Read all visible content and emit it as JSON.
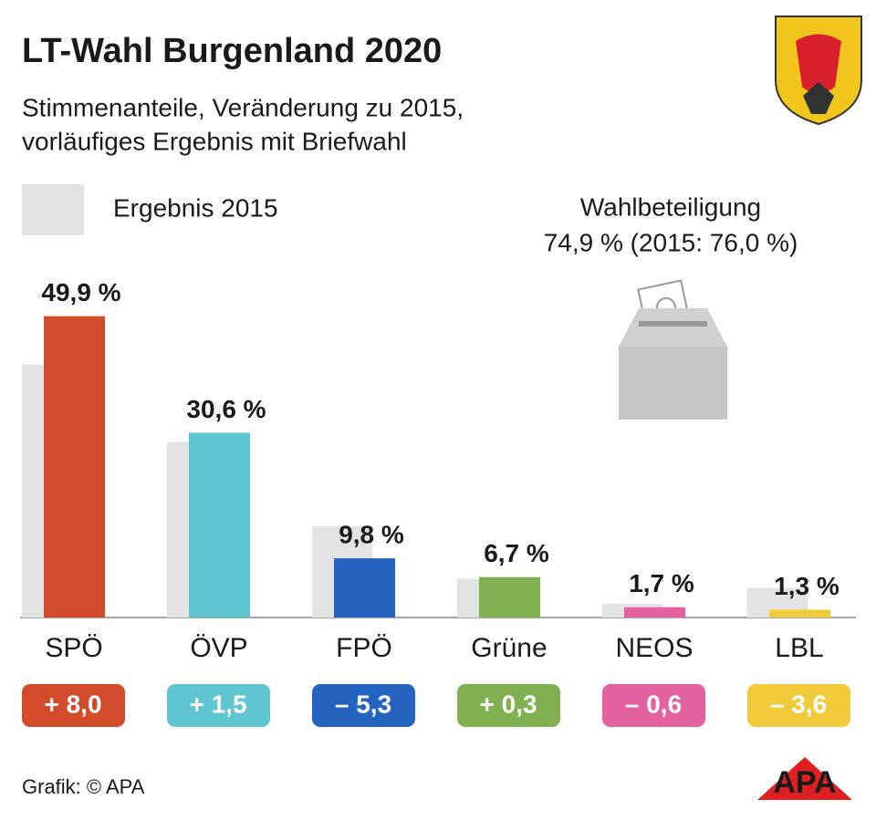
{
  "chart_data": {
    "type": "bar",
    "title": "LT-Wahl Burgenland 2020",
    "subtitle": [
      "Stimmenanteile, Veränderung zu 2015,",
      "vorläufiges Ergebnis mit Briefwahl"
    ],
    "categories": [
      "SPÖ",
      "ÖVP",
      "FPÖ",
      "Grüne",
      "NEOS",
      "LBL"
    ],
    "series": [
      {
        "name": "Ergebnis 2015",
        "color": "#e3e3e3",
        "values": [
          41.9,
          29.1,
          15.1,
          6.4,
          2.3,
          4.9
        ]
      },
      {
        "colors": [
          "#d24b2b",
          "#5fc5d1",
          "#2463bf",
          "#80b04f",
          "#e4619f",
          "#f1cb3a"
        ],
        "values": [
          49.9,
          30.6,
          9.8,
          6.7,
          1.7,
          1.3
        ],
        "value_labels": [
          "49,9 %",
          "30,6 %",
          "9,8 %",
          "6,7 %",
          "1,7 %",
          "1,3 %"
        ]
      }
    ],
    "changes": {
      "values": [
        8.0,
        1.5,
        -5.3,
        0.3,
        -0.6,
        -3.6
      ],
      "value_labels": [
        "+ 8,0",
        "+ 1,5",
        "– 5,3",
        "+ 0,3",
        "– 0,6",
        "– 3,6"
      ]
    },
    "turnout": {
      "label": "Wahlbeteiligung",
      "text": "74,9 % (2015: 76,0 %)"
    },
    "ylim": [
      0,
      50
    ],
    "source": "Grafik: © APA",
    "logo": "APA"
  }
}
